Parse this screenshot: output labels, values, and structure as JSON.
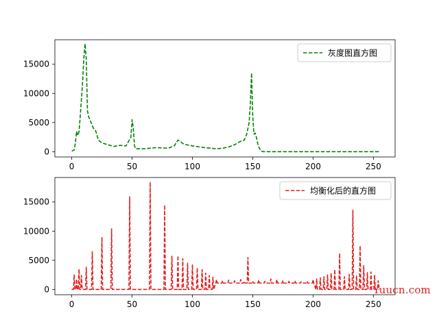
{
  "chart_data": [
    {
      "type": "line",
      "xlim": [
        -14,
        268
      ],
      "ylim": [
        -900,
        19200
      ],
      "xticks": [
        0,
        50,
        100,
        150,
        200,
        250
      ],
      "yticks": [
        0,
        5000,
        10000,
        15000
      ],
      "grid": false,
      "legend_position": "top-right",
      "colors": {
        "line": "#008000"
      },
      "series": [
        {
          "name": "灰度图直方图",
          "style": "dashed",
          "x": [
            0,
            2,
            3,
            4,
            5,
            6,
            7,
            8,
            9,
            10,
            11,
            12,
            13,
            14,
            16,
            18,
            20,
            22,
            25,
            30,
            35,
            40,
            45,
            49,
            50,
            51,
            52,
            53,
            55,
            60,
            70,
            80,
            85,
            88,
            90,
            92,
            95,
            100,
            110,
            120,
            125,
            130,
            135,
            140,
            143,
            145,
            146,
            147,
            148,
            149,
            150,
            151,
            152,
            153,
            154,
            155,
            156,
            157,
            158,
            159,
            160,
            170,
            200,
            250,
            255
          ],
          "y": [
            100,
            300,
            1500,
            3500,
            2800,
            3400,
            6000,
            9000,
            12000,
            16000,
            18500,
            16000,
            7000,
            6000,
            5000,
            4000,
            3500,
            2000,
            1500,
            1200,
            900,
            1100,
            1000,
            2500,
            5500,
            4000,
            1000,
            500,
            500,
            500,
            700,
            600,
            1000,
            2000,
            1800,
            1400,
            1200,
            1000,
            700,
            500,
            600,
            800,
            1200,
            1800,
            2000,
            3000,
            4000,
            5000,
            8000,
            13500,
            6000,
            3000,
            3200,
            2500,
            1500,
            800,
            400,
            100,
            50,
            0,
            0,
            0,
            0,
            0,
            0
          ]
        }
      ]
    },
    {
      "type": "line",
      "xlim": [
        -14,
        268
      ],
      "ylim": [
        -900,
        19200
      ],
      "xticks": [
        0,
        50,
        100,
        150,
        200,
        250
      ],
      "yticks": [
        0,
        5000,
        10000,
        15000
      ],
      "grid": false,
      "legend_position": "top-right",
      "colors": {
        "line": "#e11d1d"
      },
      "series": [
        {
          "name": "均衡化后的直方图",
          "style": "dashed",
          "spikes": [
            [
              2,
              2500
            ],
            [
              4,
              1800
            ],
            [
              6,
              3500
            ],
            [
              8,
              2400
            ],
            [
              12,
              3800
            ],
            [
              17,
              6500
            ],
            [
              25,
              9000
            ],
            [
              33,
              10400
            ],
            [
              48,
              15900
            ],
            [
              65,
              18400
            ],
            [
              77,
              14500
            ],
            [
              83,
              5700
            ],
            [
              88,
              5800
            ],
            [
              92,
              5300
            ],
            [
              96,
              4500
            ],
            [
              100,
              4300
            ],
            [
              104,
              3700
            ],
            [
              108,
              3400
            ],
            [
              111,
              2800
            ],
            [
              114,
              2400
            ],
            [
              117,
              2100
            ],
            [
              120,
              1700
            ],
            [
              125,
              1500
            ],
            [
              130,
              1600
            ],
            [
              135,
              1500
            ],
            [
              140,
              1700
            ],
            [
              143,
              1400
            ],
            [
              146,
              5500
            ],
            [
              150,
              1400
            ],
            [
              155,
              1600
            ],
            [
              160,
              1400
            ],
            [
              165,
              1800
            ],
            [
              170,
              1700
            ],
            [
              175,
              1500
            ],
            [
              180,
              1400
            ],
            [
              185,
              1500
            ],
            [
              190,
              1300
            ],
            [
              195,
              1400
            ],
            [
              200,
              1700
            ],
            [
              203,
              1800
            ],
            [
              206,
              2000
            ],
            [
              209,
              2200
            ],
            [
              212,
              2500
            ],
            [
              215,
              2800
            ],
            [
              218,
              3400
            ],
            [
              222,
              6200
            ],
            [
              226,
              2200
            ],
            [
              230,
              2600
            ],
            [
              233,
              13600
            ],
            [
              236,
              2400
            ],
            [
              239,
              7500
            ],
            [
              242,
              4100
            ],
            [
              245,
              2900
            ],
            [
              248,
              3000
            ],
            [
              251,
              2500
            ],
            [
              254,
              1500
            ]
          ],
          "baseline": 0,
          "tail_x": [
            120,
            200
          ],
          "tail_level": [
            1100,
            1600
          ]
        }
      ]
    }
  ],
  "watermark": "Yuucn.com"
}
